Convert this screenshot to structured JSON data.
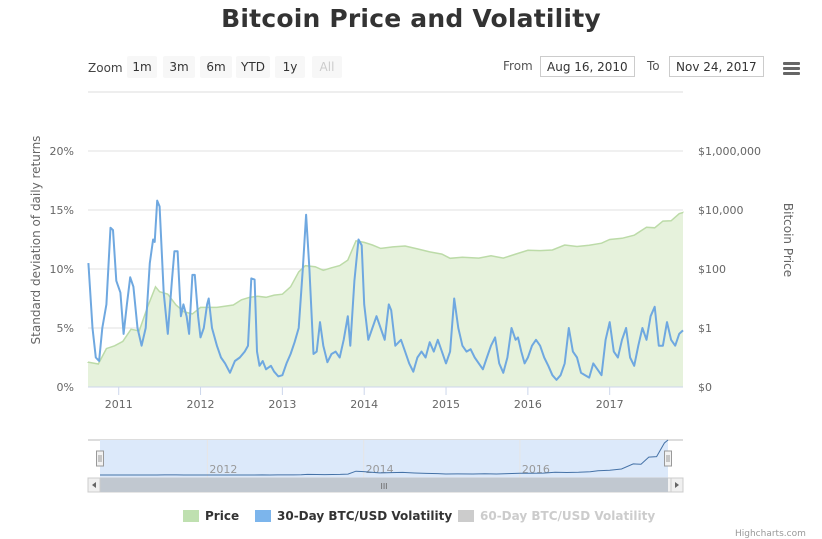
{
  "title": "Bitcoin Price and Volatility",
  "range_selector": {
    "zoom_label": "Zoom",
    "buttons": [
      {
        "label": "1m",
        "disabled": false
      },
      {
        "label": "3m",
        "disabled": false
      },
      {
        "label": "6m",
        "disabled": false
      },
      {
        "label": "YTD",
        "disabled": false
      },
      {
        "label": "1y",
        "disabled": false
      },
      {
        "label": "All",
        "disabled": true
      }
    ],
    "from_label": "From",
    "from_value": "Aug 16, 2010",
    "to_label": "To",
    "to_value": "Nov 24, 2017"
  },
  "menu_icon": "hamburger-menu-icon",
  "colors": {
    "price_fill": "#e6f2dc",
    "price_line": "#bcdba8",
    "volatility_line": "#6fa8e0",
    "legend_price": "#bfe0b0",
    "legend_volatility": "#7cb5ec",
    "legend_hidden": "#cccccc",
    "navigator_mask": "#dce9fa",
    "scrollbar": "#c1c8d0"
  },
  "legend": [
    {
      "label": "Price",
      "hidden": false
    },
    {
      "label": "30-Day BTC/USD Volatility",
      "hidden": false
    },
    {
      "label": "60-Day BTC/USD Volatility",
      "hidden": true
    }
  ],
  "credits": "Highcharts.com",
  "navigator": {
    "tick_labels": [
      "2012",
      "2014",
      "2016"
    ],
    "scrollbar_grip": "III"
  },
  "chart_data": {
    "type": "line",
    "title": "Bitcoin Price and Volatility",
    "xlabel": "",
    "x_range": [
      "2010-08-16",
      "2017-11-24"
    ],
    "x_tick_labels": [
      "2011",
      "2012",
      "2013",
      "2014",
      "2015",
      "2016",
      "2017"
    ],
    "y_left": {
      "label": "Standard deviation of daily returns",
      "tick_labels": [
        "0%",
        "5%",
        "10%",
        "15%",
        "20%"
      ],
      "range": [
        0,
        20
      ]
    },
    "y_right": {
      "label": "Bitcoin Price",
      "scale": "logarithmic",
      "tick_labels": [
        "$0",
        "$1",
        "$100",
        "$10,000",
        "$1,000,000"
      ]
    },
    "grid": true,
    "legend_position": "bottom",
    "series": [
      {
        "name": "Price",
        "type": "area",
        "axis": "right",
        "points": [
          [
            2010.62,
            0.07
          ],
          [
            2010.75,
            0.06
          ],
          [
            2010.85,
            0.2
          ],
          [
            2010.95,
            0.25
          ],
          [
            2011.05,
            0.35
          ],
          [
            2011.15,
            0.9
          ],
          [
            2011.25,
            0.8
          ],
          [
            2011.35,
            5
          ],
          [
            2011.45,
            25
          ],
          [
            2011.5,
            17
          ],
          [
            2011.6,
            14
          ],
          [
            2011.7,
            6
          ],
          [
            2011.8,
            3.5
          ],
          [
            2011.9,
            3
          ],
          [
            2012.0,
            5
          ],
          [
            2012.2,
            5
          ],
          [
            2012.4,
            6
          ],
          [
            2012.5,
            9
          ],
          [
            2012.6,
            11
          ],
          [
            2012.7,
            12
          ],
          [
            2012.8,
            11
          ],
          [
            2012.9,
            13
          ],
          [
            2013.0,
            14
          ],
          [
            2013.1,
            25
          ],
          [
            2013.2,
            80
          ],
          [
            2013.28,
            130
          ],
          [
            2013.4,
            120
          ],
          [
            2013.5,
            90
          ],
          [
            2013.6,
            110
          ],
          [
            2013.7,
            130
          ],
          [
            2013.8,
            200
          ],
          [
            2013.9,
            900
          ],
          [
            2014.0,
            800
          ],
          [
            2014.1,
            650
          ],
          [
            2014.2,
            500
          ],
          [
            2014.35,
            560
          ],
          [
            2014.5,
            600
          ],
          [
            2014.65,
            480
          ],
          [
            2014.8,
            380
          ],
          [
            2014.95,
            320
          ],
          [
            2015.05,
            230
          ],
          [
            2015.2,
            250
          ],
          [
            2015.4,
            235
          ],
          [
            2015.55,
            280
          ],
          [
            2015.7,
            235
          ],
          [
            2015.85,
            320
          ],
          [
            2016.0,
            430
          ],
          [
            2016.15,
            420
          ],
          [
            2016.3,
            440
          ],
          [
            2016.45,
            650
          ],
          [
            2016.6,
            580
          ],
          [
            2016.75,
            640
          ],
          [
            2016.9,
            750
          ],
          [
            2017.0,
            1000
          ],
          [
            2017.15,
            1100
          ],
          [
            2017.3,
            1400
          ],
          [
            2017.45,
            2600
          ],
          [
            2017.55,
            2500
          ],
          [
            2017.65,
            4200
          ],
          [
            2017.75,
            4300
          ],
          [
            2017.85,
            7500
          ],
          [
            2017.9,
            8200
          ]
        ]
      },
      {
        "name": "30-Day BTC/USD Volatility",
        "type": "line",
        "axis": "left",
        "points": [
          [
            2010.63,
            10.5
          ],
          [
            2010.68,
            5
          ],
          [
            2010.72,
            2.5
          ],
          [
            2010.76,
            2.2
          ],
          [
            2010.8,
            5
          ],
          [
            2010.85,
            7
          ],
          [
            2010.9,
            13.5
          ],
          [
            2010.93,
            13.3
          ],
          [
            2010.97,
            9
          ],
          [
            2011.02,
            8
          ],
          [
            2011.06,
            4.5
          ],
          [
            2011.1,
            7
          ],
          [
            2011.14,
            9.3
          ],
          [
            2011.18,
            8.5
          ],
          [
            2011.23,
            5
          ],
          [
            2011.28,
            3.5
          ],
          [
            2011.33,
            5
          ],
          [
            2011.38,
            10.5
          ],
          [
            2011.42,
            12.5
          ],
          [
            2011.44,
            12.3
          ],
          [
            2011.47,
            15.8
          ],
          [
            2011.5,
            15.3
          ],
          [
            2011.55,
            8
          ],
          [
            2011.6,
            4.5
          ],
          [
            2011.65,
            9
          ],
          [
            2011.68,
            11.5
          ],
          [
            2011.72,
            11.5
          ],
          [
            2011.76,
            6
          ],
          [
            2011.79,
            7
          ],
          [
            2011.83,
            6
          ],
          [
            2011.86,
            4.5
          ],
          [
            2011.9,
            9.5
          ],
          [
            2011.93,
            9.5
          ],
          [
            2011.97,
            6
          ],
          [
            2012.0,
            4.2
          ],
          [
            2012.04,
            5
          ],
          [
            2012.08,
            7
          ],
          [
            2012.1,
            7.5
          ],
          [
            2012.14,
            5
          ],
          [
            2012.2,
            3.5
          ],
          [
            2012.25,
            2.5
          ],
          [
            2012.3,
            2
          ],
          [
            2012.36,
            1.2
          ],
          [
            2012.42,
            2.2
          ],
          [
            2012.48,
            2.5
          ],
          [
            2012.54,
            3
          ],
          [
            2012.58,
            3.5
          ],
          [
            2012.62,
            9.2
          ],
          [
            2012.66,
            9.1
          ],
          [
            2012.69,
            3
          ],
          [
            2012.72,
            1.8
          ],
          [
            2012.76,
            2.2
          ],
          [
            2012.8,
            1.5
          ],
          [
            2012.86,
            1.8
          ],
          [
            2012.9,
            1.3
          ],
          [
            2012.95,
            0.9
          ],
          [
            2013.0,
            1
          ],
          [
            2013.05,
            2
          ],
          [
            2013.1,
            2.8
          ],
          [
            2013.15,
            3.8
          ],
          [
            2013.2,
            5
          ],
          [
            2013.25,
            10
          ],
          [
            2013.29,
            14.6
          ],
          [
            2013.33,
            10
          ],
          [
            2013.38,
            2.8
          ],
          [
            2013.42,
            3
          ],
          [
            2013.46,
            5.5
          ],
          [
            2013.5,
            3.5
          ],
          [
            2013.55,
            2.1
          ],
          [
            2013.6,
            2.8
          ],
          [
            2013.65,
            3
          ],
          [
            2013.7,
            2.5
          ],
          [
            2013.75,
            4
          ],
          [
            2013.8,
            6
          ],
          [
            2013.83,
            3.5
          ],
          [
            2013.88,
            9
          ],
          [
            2013.93,
            12.5
          ],
          [
            2013.97,
            12
          ],
          [
            2014.0,
            7
          ],
          [
            2014.05,
            4
          ],
          [
            2014.1,
            5
          ],
          [
            2014.15,
            6
          ],
          [
            2014.2,
            5
          ],
          [
            2014.25,
            4
          ],
          [
            2014.3,
            7
          ],
          [
            2014.33,
            6.5
          ],
          [
            2014.38,
            3.5
          ],
          [
            2014.45,
            4
          ],
          [
            2014.5,
            3
          ],
          [
            2014.55,
            2
          ],
          [
            2014.6,
            1.3
          ],
          [
            2014.65,
            2.5
          ],
          [
            2014.7,
            3
          ],
          [
            2014.75,
            2.5
          ],
          [
            2014.8,
            3.8
          ],
          [
            2014.85,
            3
          ],
          [
            2014.9,
            4
          ],
          [
            2014.95,
            3
          ],
          [
            2015.0,
            2
          ],
          [
            2015.05,
            3
          ],
          [
            2015.1,
            7.5
          ],
          [
            2015.15,
            5
          ],
          [
            2015.2,
            3.5
          ],
          [
            2015.25,
            3
          ],
          [
            2015.3,
            3.2
          ],
          [
            2015.35,
            2.5
          ],
          [
            2015.4,
            2
          ],
          [
            2015.45,
            1.5
          ],
          [
            2015.5,
            2.5
          ],
          [
            2015.55,
            3.5
          ],
          [
            2015.6,
            4.2
          ],
          [
            2015.65,
            2
          ],
          [
            2015.7,
            1.2
          ],
          [
            2015.75,
            2.5
          ],
          [
            2015.8,
            5
          ],
          [
            2015.85,
            4
          ],
          [
            2015.88,
            4.2
          ],
          [
            2015.92,
            3
          ],
          [
            2015.96,
            2
          ],
          [
            2016.0,
            2.5
          ],
          [
            2016.05,
            3.5
          ],
          [
            2016.1,
            4
          ],
          [
            2016.15,
            3.5
          ],
          [
            2016.2,
            2.5
          ],
          [
            2016.25,
            1.8
          ],
          [
            2016.3,
            1
          ],
          [
            2016.35,
            0.6
          ],
          [
            2016.4,
            1
          ],
          [
            2016.45,
            2
          ],
          [
            2016.5,
            5
          ],
          [
            2016.55,
            3
          ],
          [
            2016.6,
            2.5
          ],
          [
            2016.65,
            1.2
          ],
          [
            2016.7,
            1
          ],
          [
            2016.75,
            0.8
          ],
          [
            2016.8,
            2
          ],
          [
            2016.85,
            1.5
          ],
          [
            2016.9,
            1
          ],
          [
            2016.95,
            4
          ],
          [
            2017.0,
            5.5
          ],
          [
            2017.05,
            3
          ],
          [
            2017.1,
            2.5
          ],
          [
            2017.15,
            4
          ],
          [
            2017.2,
            5
          ],
          [
            2017.25,
            2.5
          ],
          [
            2017.3,
            1.8
          ],
          [
            2017.35,
            3.5
          ],
          [
            2017.4,
            5
          ],
          [
            2017.45,
            4
          ],
          [
            2017.5,
            6
          ],
          [
            2017.55,
            6.8
          ],
          [
            2017.6,
            3.5
          ],
          [
            2017.65,
            3.5
          ],
          [
            2017.7,
            5.5
          ],
          [
            2017.75,
            4
          ],
          [
            2017.8,
            3.5
          ],
          [
            2017.85,
            4.5
          ],
          [
            2017.9,
            4.8
          ]
        ]
      }
    ]
  }
}
